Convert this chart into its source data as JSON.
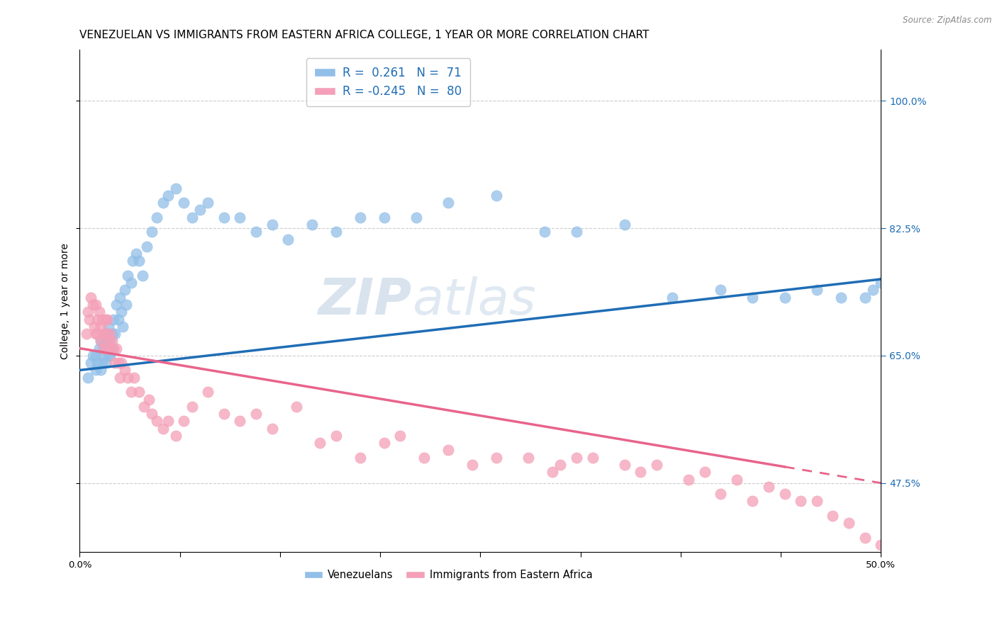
{
  "title": "VENEZUELAN VS IMMIGRANTS FROM EASTERN AFRICA COLLEGE, 1 YEAR OR MORE CORRELATION CHART",
  "source": "Source: ZipAtlas.com",
  "ylabel": "College, 1 year or more",
  "xlim": [
    0.0,
    0.5
  ],
  "ylim": [
    0.38,
    1.07
  ],
  "xticks": [
    0.0,
    0.0625,
    0.125,
    0.1875,
    0.25,
    0.3125,
    0.375,
    0.4375,
    0.5
  ],
  "xtick_labels": [
    "0.0%",
    "",
    "",
    "",
    "",
    "",
    "",
    "",
    "50.0%"
  ],
  "yticks_right": [
    0.475,
    0.65,
    0.825,
    1.0
  ],
  "ytick_labels_right": [
    "47.5%",
    "65.0%",
    "82.5%",
    "100.0%"
  ],
  "blue_color": "#92bfe8",
  "pink_color": "#f4a0b8",
  "blue_line_color": "#1f6db5",
  "pink_line_color": "#e8648a",
  "watermark_zip": "ZIP",
  "watermark_atlas": "atlas",
  "background_color": "#ffffff",
  "grid_color": "#cccccc",
  "title_fontsize": 11,
  "axis_fontsize": 10,
  "tick_fontsize": 9.5,
  "blue_scatter_x": [
    0.005,
    0.007,
    0.008,
    0.01,
    0.01,
    0.011,
    0.012,
    0.013,
    0.013,
    0.014,
    0.015,
    0.015,
    0.016,
    0.016,
    0.017,
    0.017,
    0.018,
    0.018,
    0.019,
    0.019,
    0.02,
    0.02,
    0.021,
    0.022,
    0.023,
    0.024,
    0.025,
    0.026,
    0.027,
    0.028,
    0.029,
    0.03,
    0.032,
    0.033,
    0.035,
    0.037,
    0.039,
    0.042,
    0.045,
    0.048,
    0.052,
    0.055,
    0.06,
    0.065,
    0.07,
    0.075,
    0.08,
    0.09,
    0.1,
    0.11,
    0.12,
    0.13,
    0.145,
    0.16,
    0.175,
    0.19,
    0.21,
    0.23,
    0.26,
    0.29,
    0.31,
    0.34,
    0.37,
    0.4,
    0.42,
    0.44,
    0.46,
    0.475,
    0.49,
    0.495,
    0.5
  ],
  "blue_scatter_y": [
    0.62,
    0.64,
    0.65,
    0.63,
    0.65,
    0.64,
    0.66,
    0.63,
    0.67,
    0.64,
    0.66,
    0.65,
    0.64,
    0.67,
    0.66,
    0.68,
    0.65,
    0.69,
    0.67,
    0.65,
    0.68,
    0.66,
    0.7,
    0.68,
    0.72,
    0.7,
    0.73,
    0.71,
    0.69,
    0.74,
    0.72,
    0.76,
    0.75,
    0.78,
    0.79,
    0.78,
    0.76,
    0.8,
    0.82,
    0.84,
    0.86,
    0.87,
    0.88,
    0.86,
    0.84,
    0.85,
    0.86,
    0.84,
    0.84,
    0.82,
    0.83,
    0.81,
    0.83,
    0.82,
    0.84,
    0.84,
    0.84,
    0.86,
    0.87,
    0.82,
    0.82,
    0.83,
    0.73,
    0.74,
    0.73,
    0.73,
    0.74,
    0.73,
    0.73,
    0.74,
    0.75
  ],
  "pink_scatter_x": [
    0.004,
    0.005,
    0.006,
    0.007,
    0.008,
    0.009,
    0.01,
    0.01,
    0.011,
    0.011,
    0.012,
    0.013,
    0.013,
    0.014,
    0.015,
    0.015,
    0.016,
    0.016,
    0.017,
    0.017,
    0.018,
    0.019,
    0.019,
    0.02,
    0.021,
    0.022,
    0.023,
    0.024,
    0.025,
    0.026,
    0.028,
    0.03,
    0.032,
    0.034,
    0.037,
    0.04,
    0.043,
    0.045,
    0.048,
    0.052,
    0.055,
    0.06,
    0.065,
    0.07,
    0.08,
    0.09,
    0.1,
    0.11,
    0.12,
    0.135,
    0.15,
    0.16,
    0.175,
    0.19,
    0.2,
    0.215,
    0.23,
    0.245,
    0.26,
    0.28,
    0.295,
    0.3,
    0.31,
    0.32,
    0.34,
    0.35,
    0.36,
    0.38,
    0.39,
    0.4,
    0.41,
    0.42,
    0.43,
    0.44,
    0.45,
    0.46,
    0.47,
    0.48,
    0.49,
    0.5
  ],
  "pink_scatter_y": [
    0.68,
    0.71,
    0.7,
    0.73,
    0.72,
    0.69,
    0.68,
    0.72,
    0.7,
    0.68,
    0.71,
    0.69,
    0.67,
    0.7,
    0.68,
    0.66,
    0.7,
    0.68,
    0.66,
    0.7,
    0.67,
    0.68,
    0.66,
    0.67,
    0.66,
    0.64,
    0.66,
    0.64,
    0.62,
    0.64,
    0.63,
    0.62,
    0.6,
    0.62,
    0.6,
    0.58,
    0.59,
    0.57,
    0.56,
    0.55,
    0.56,
    0.54,
    0.56,
    0.58,
    0.6,
    0.57,
    0.56,
    0.57,
    0.55,
    0.58,
    0.53,
    0.54,
    0.51,
    0.53,
    0.54,
    0.51,
    0.52,
    0.5,
    0.51,
    0.51,
    0.49,
    0.5,
    0.51,
    0.51,
    0.5,
    0.49,
    0.5,
    0.48,
    0.49,
    0.46,
    0.48,
    0.45,
    0.47,
    0.46,
    0.45,
    0.45,
    0.43,
    0.42,
    0.4,
    0.39
  ]
}
